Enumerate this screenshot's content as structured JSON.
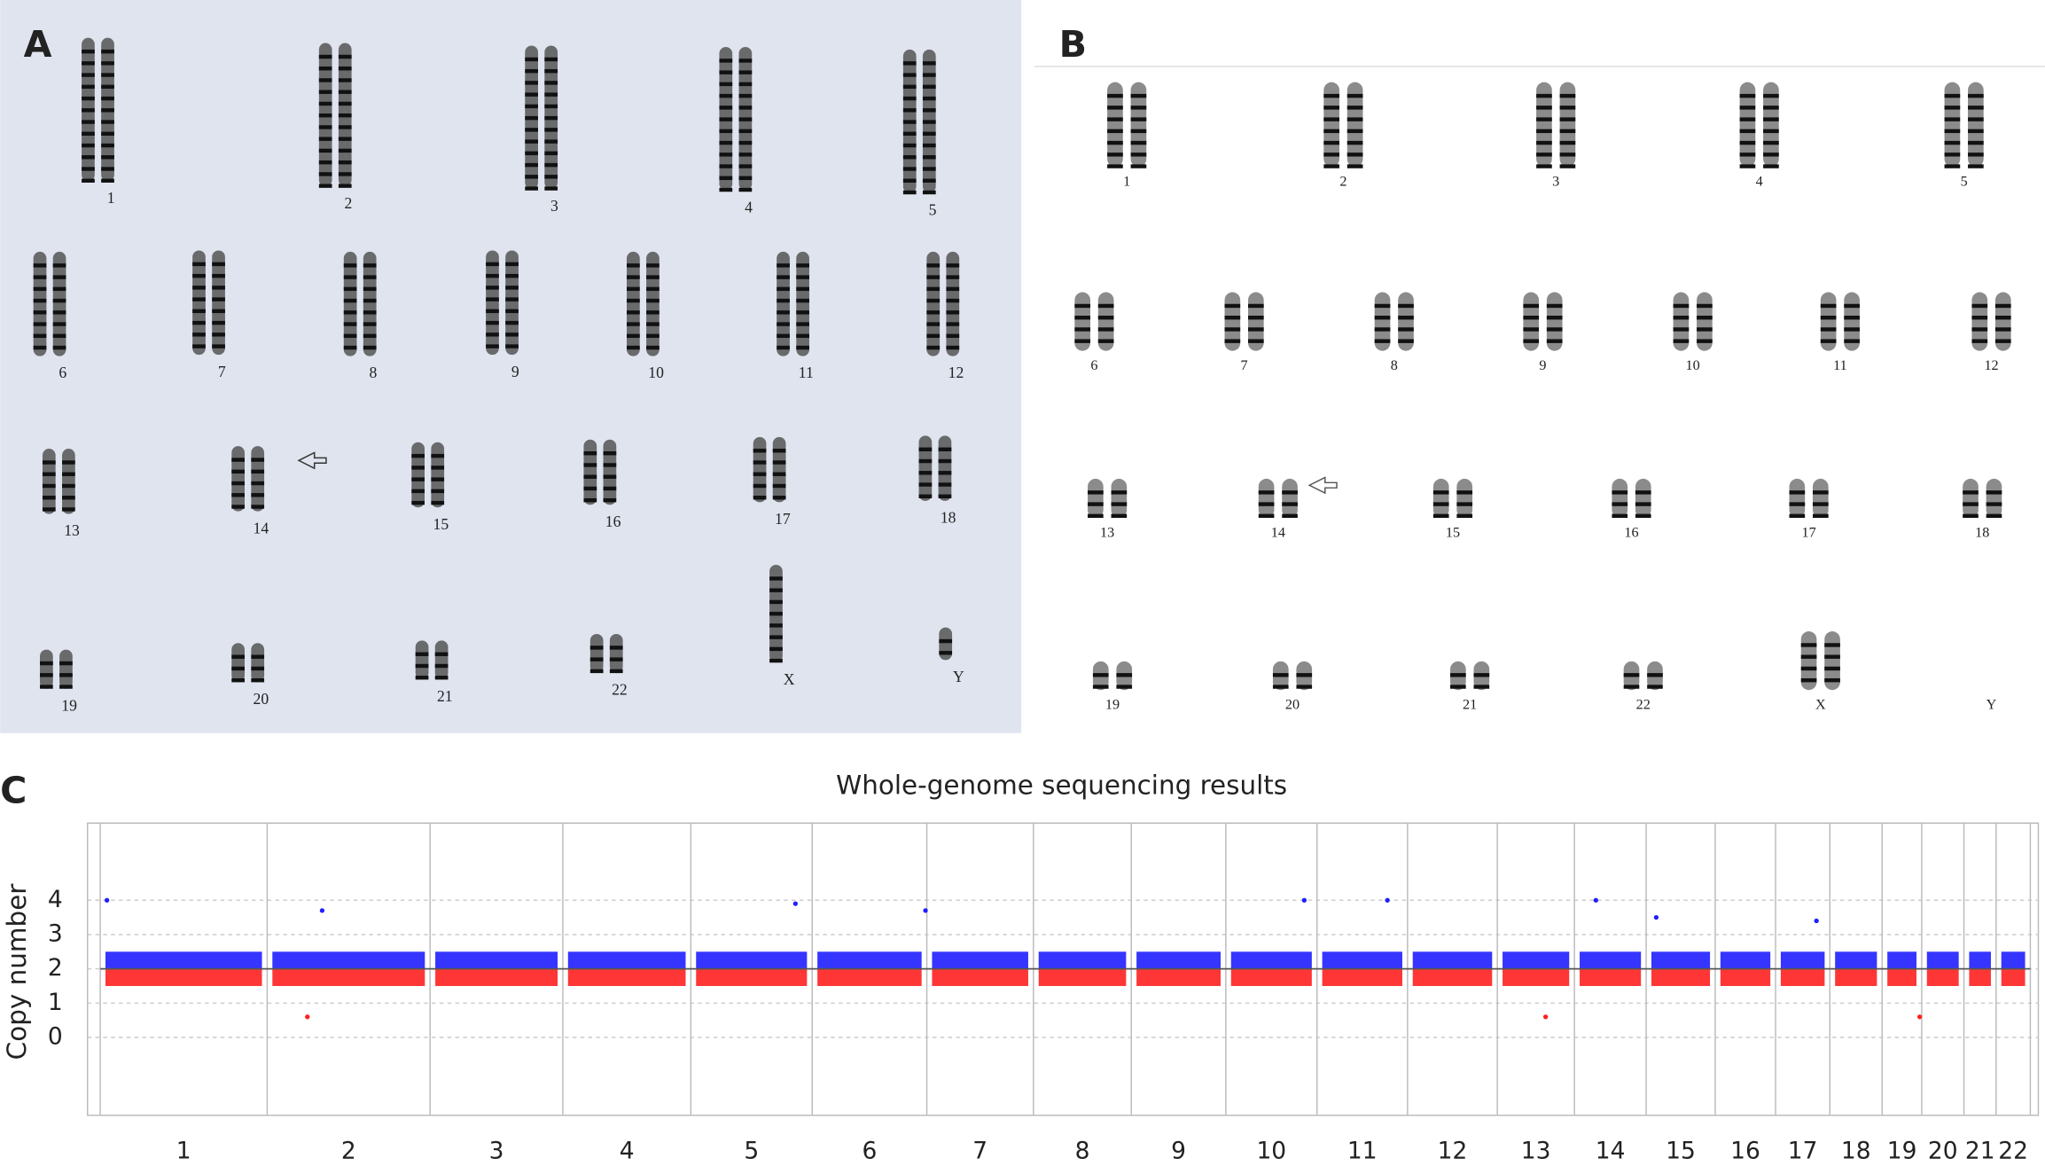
{
  "panel_a": {
    "letter": "A",
    "labels": [
      "1",
      "2",
      "3",
      "4",
      "5",
      "6",
      "7",
      "8",
      "9",
      "10",
      "11",
      "12",
      "13",
      "14",
      "15",
      "16",
      "17",
      "18",
      "19",
      "20",
      "21",
      "22",
      "X",
      "Y"
    ]
  },
  "panel_b": {
    "letter": "B",
    "labels": [
      "1",
      "2",
      "3",
      "4",
      "5",
      "6",
      "7",
      "8",
      "9",
      "10",
      "11",
      "12",
      "13",
      "14",
      "15",
      "16",
      "17",
      "18",
      "19",
      "20",
      "21",
      "22",
      "X",
      "Y"
    ]
  },
  "panel_c": {
    "letter": "C"
  },
  "chart_data": {
    "type": "cnv",
    "title": "Whole-genome sequencing results",
    "y_label": "Copy number",
    "categories": [
      "1",
      "2",
      "3",
      "4",
      "5",
      "6",
      "7",
      "8",
      "9",
      "10",
      "11",
      "12",
      "13",
      "14",
      "15",
      "16",
      "17",
      "18",
      "19",
      "20",
      "21",
      "22"
    ],
    "boundaries": [
      0,
      249,
      492,
      690,
      881,
      1062,
      1233,
      1392,
      1538,
      1679,
      1815,
      1950,
      2084,
      2199,
      2306,
      2409,
      2499,
      2580,
      2658,
      2717,
      2780,
      2828,
      2879
    ],
    "xlim": [
      -19,
      2891
    ],
    "ylim": [
      -2.27,
      6.25
    ],
    "yticks": [
      0,
      1,
      2,
      3,
      4
    ],
    "grid": true,
    "baseline": 2,
    "series": [
      {
        "color": "#1f1fff",
        "low": 2,
        "high": 2.5
      },
      {
        "color": "#ff2020",
        "low": 1.5,
        "high": 2
      }
    ],
    "points": {
      "x": [
        10,
        331,
        1037,
        1231,
        1796,
        1920,
        2231,
        2321,
        2560,
        2156,
        309,
        2714
      ],
      "y": [
        4,
        3.7,
        3.9,
        3.7,
        4,
        4,
        4,
        3.5,
        3.4,
        0.6,
        0.6,
        0.6
      ]
    }
  }
}
